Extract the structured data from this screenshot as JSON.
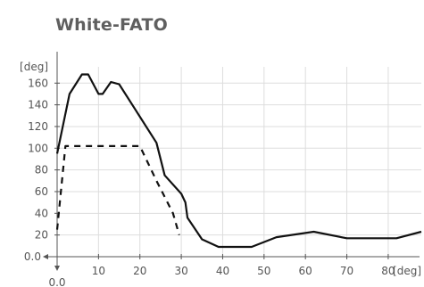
{
  "chart_data": {
    "type": "line",
    "title": "White-FATO",
    "x_unit": "[deg]",
    "y_unit": "[deg]",
    "x_origin_label": "0.0",
    "y_origin_label": "0.0",
    "xlim": [
      0,
      88
    ],
    "ylim": [
      0,
      175
    ],
    "x_ticks": [
      10,
      20,
      30,
      40,
      50,
      60,
      70,
      80
    ],
    "y_ticks": [
      20,
      40,
      60,
      80,
      100,
      120,
      140,
      160
    ],
    "grid": true,
    "axis_color": "#555555",
    "grid_color": "#dddddd",
    "series": [
      {
        "style": "solid",
        "color": "#111111",
        "points": [
          [
            0,
            95
          ],
          [
            3,
            150
          ],
          [
            6,
            168
          ],
          [
            7.5,
            168
          ],
          [
            10,
            150
          ],
          [
            11,
            150
          ],
          [
            13,
            161
          ],
          [
            15,
            159
          ],
          [
            19,
            135
          ],
          [
            24,
            105
          ],
          [
            26,
            75
          ],
          [
            30,
            58
          ],
          [
            31,
            50
          ],
          [
            31.5,
            36
          ],
          [
            35,
            16
          ],
          [
            39,
            9
          ],
          [
            47,
            9
          ],
          [
            53,
            18
          ],
          [
            62,
            23
          ],
          [
            70,
            17
          ],
          [
            82,
            17
          ],
          [
            88,
            23
          ]
        ]
      },
      {
        "style": "dashed",
        "color": "#111111",
        "points": [
          [
            0,
            25
          ],
          [
            2,
            102
          ],
          [
            20,
            102
          ],
          [
            24,
            70
          ],
          [
            28,
            40
          ],
          [
            29.5,
            20
          ]
        ]
      }
    ]
  }
}
